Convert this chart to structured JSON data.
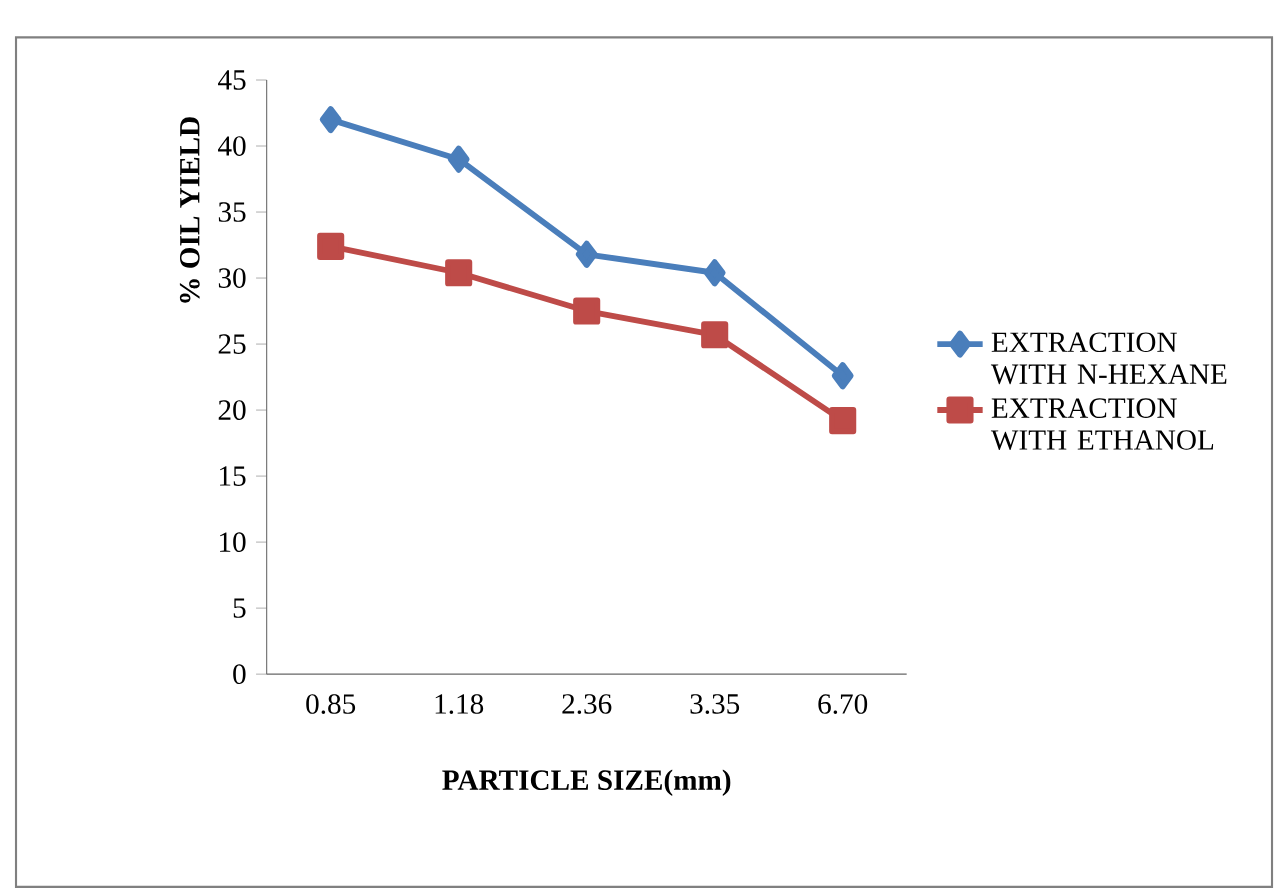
{
  "chart_data": {
    "type": "line",
    "xlabel": "PARTICLE SIZE(mm)",
    "ylabel": "% OIL YIELD",
    "categories": [
      "0.85",
      "1.18",
      "2.36",
      "3.35",
      "6.70"
    ],
    "series": [
      {
        "name": "EXTRACTION WITH N-HEXANE",
        "color": "#4a7ebb",
        "marker": "diamond",
        "values": [
          42,
          39,
          31.8,
          30.4,
          22.6
        ]
      },
      {
        "name": "EXTRACTION WITH ETHANOL",
        "color": "#be4b48",
        "marker": "square",
        "values": [
          32.4,
          30.4,
          27.5,
          25.7,
          19.2
        ]
      }
    ],
    "ylim": [
      0,
      45
    ],
    "yticks": [
      0,
      5,
      10,
      15,
      20,
      25,
      30,
      35,
      40,
      45
    ],
    "grid": false,
    "legend": "right",
    "line_style": "solid"
  }
}
